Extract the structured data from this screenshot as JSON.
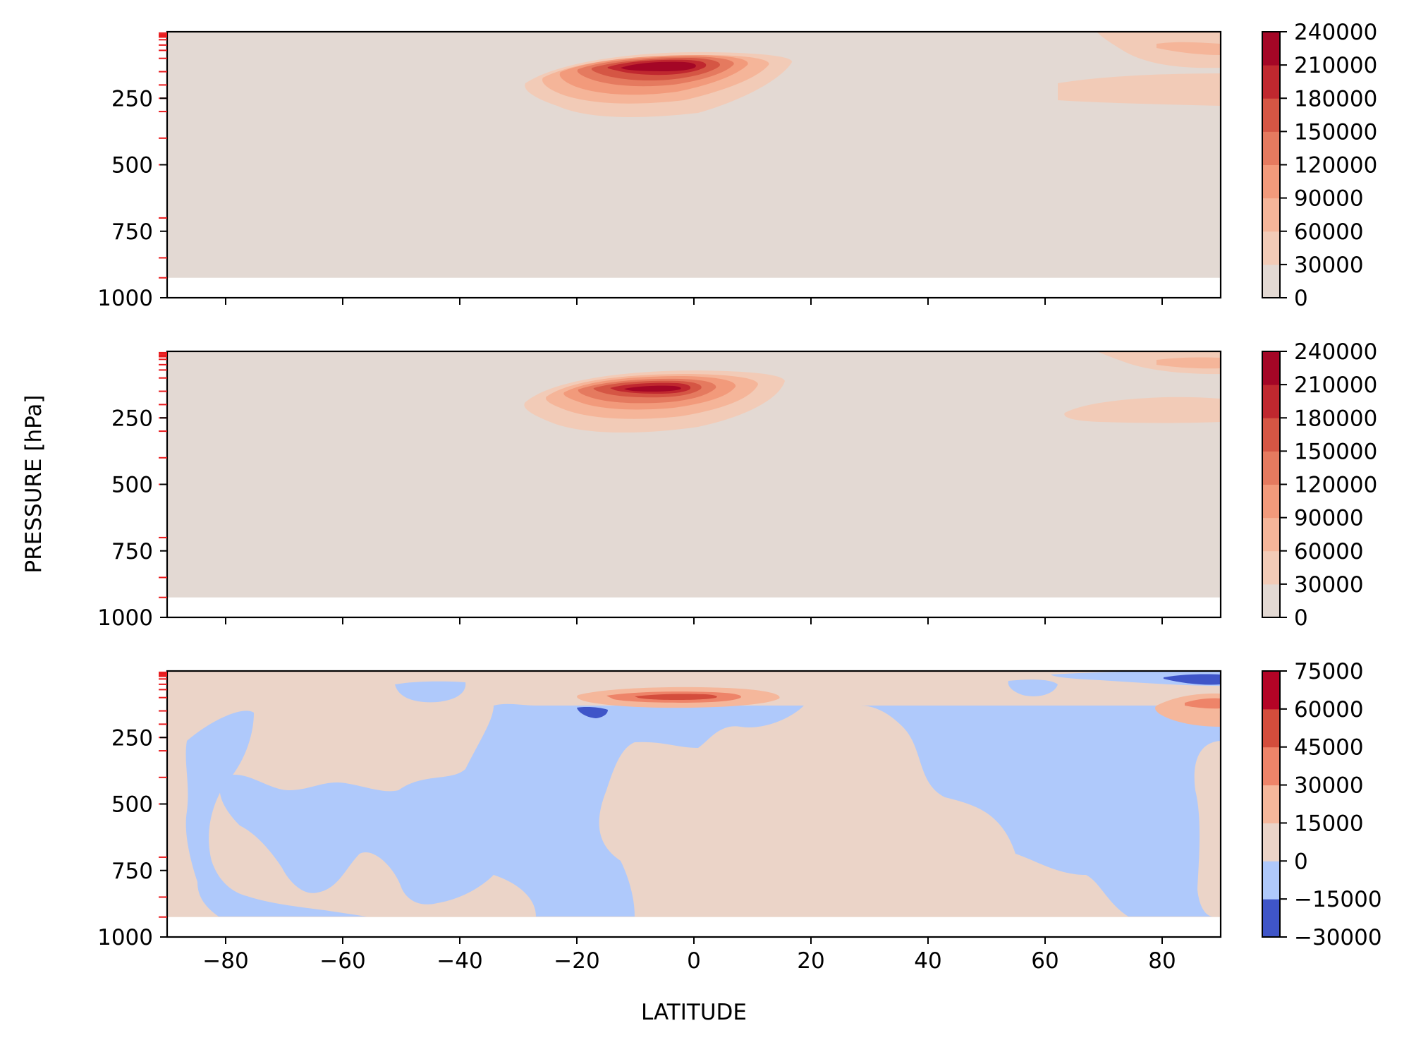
{
  "chart_data": {
    "type": "contourf",
    "xlabel": "LATITUDE",
    "ylabel": "PRESSURE [hPa]",
    "xlim": [
      -90,
      90
    ],
    "ylim": [
      1000,
      0
    ],
    "y_inverted": true,
    "data_bottom_pressure": 925,
    "x_ticks": [
      -80,
      -60,
      -40,
      -20,
      0,
      20,
      40,
      60,
      80
    ],
    "x_tick_labels": [
      "−80",
      "−60",
      "−40",
      "−20",
      "0",
      "20",
      "40",
      "60",
      "80"
    ],
    "y_ticks": [
      250,
      500,
      750,
      1000
    ],
    "y_tick_labels": [
      "250",
      "500",
      "750",
      "1000"
    ],
    "pressure_levels": [
      5,
      10,
      15,
      20,
      30,
      50,
      70,
      100,
      150,
      200,
      250,
      300,
      400,
      500,
      700,
      850,
      925
    ],
    "pressure_level_tick_color": "#e8191c",
    "panels": [
      {
        "colorbar_levels": [
          0,
          30000,
          60000,
          90000,
          120000,
          150000,
          180000,
          210000,
          240000
        ],
        "colorbar_labels": [
          "0",
          "30000",
          "60000",
          "90000",
          "120000",
          "150000",
          "180000",
          "210000",
          "240000"
        ],
        "colors": [
          "#e3d9d3",
          "#f2cbb7",
          "#f5b599",
          "#f29a7b",
          "#e57a5f",
          "#d55644",
          "#c0282f",
          "#a40626"
        ],
        "features": [
          {
            "level_index": 1,
            "lat_range": [
              -29,
              17
            ],
            "pressure_range": [
              75,
              315
            ],
            "note": "upper-level jet core"
          },
          {
            "level_index": 6,
            "lat_range": [
              -14,
              4
            ],
            "pressure_range": [
              110,
              160
            ],
            "note": "maximum"
          },
          {
            "level_index": 1,
            "lat_range": [
              62,
              90
            ],
            "pressure_range": [
              155,
              265
            ],
            "note": "polar upper band"
          },
          {
            "level_index": 1,
            "lat_range": [
              68,
              90
            ],
            "pressure_range": [
              0,
              145
            ],
            "note": "polar top band"
          }
        ]
      },
      {
        "colorbar_levels": [
          0,
          30000,
          60000,
          90000,
          120000,
          150000,
          180000,
          210000,
          240000
        ],
        "colorbar_labels": [
          "0",
          "30000",
          "60000",
          "90000",
          "120000",
          "150000",
          "180000",
          "210000",
          "240000"
        ],
        "colors": [
          "#e3d9d3",
          "#f2cbb7",
          "#f5b599",
          "#f29a7b",
          "#e57a5f",
          "#d55644",
          "#c0282f",
          "#a40626"
        ],
        "features": [
          {
            "level_index": 1,
            "lat_range": [
              -29,
              16
            ],
            "pressure_range": [
              80,
              305
            ],
            "note": "upper-level jet core"
          },
          {
            "level_index": 6,
            "lat_range": [
              -12,
              2
            ],
            "pressure_range": [
              130,
              165
            ],
            "note": "maximum"
          },
          {
            "level_index": 1,
            "lat_range": [
              63,
              90
            ],
            "pressure_range": [
              170,
              270
            ],
            "note": "polar upper band"
          },
          {
            "level_index": 1,
            "lat_range": [
              68,
              90
            ],
            "pressure_range": [
              0,
              85
            ],
            "note": "polar top band"
          }
        ]
      },
      {
        "colorbar_levels": [
          -30000,
          -15000,
          0,
          15000,
          30000,
          45000,
          60000,
          75000
        ],
        "colorbar_labels": [
          "−30000",
          "−15000",
          "0",
          "15000",
          "30000",
          "45000",
          "60000",
          "75000"
        ],
        "colors": [
          "#3f55c8",
          "#afc9fb",
          "#ebd4c8",
          "#f5b79b",
          "#ee8469",
          "#d44d3c",
          "#b40426"
        ],
        "features": [
          {
            "level_index": 3,
            "lat_range": [
              -19,
              15
            ],
            "pressure_range": [
              70,
              130
            ],
            "note": "positive difference aloft"
          },
          {
            "level_index": 5,
            "lat_range": [
              -8,
              5
            ],
            "pressure_range": [
              95,
              115
            ],
            "note": "maximum"
          },
          {
            "level_index": 0,
            "lat_range": [
              -20,
              -15
            ],
            "pressure_range": [
              130,
              175
            ],
            "note": "negative pocket"
          },
          {
            "level_index": 1,
            "lat_range": [
              -20,
              85
            ],
            "pressure_range": [
              110,
              925
            ],
            "note": "broad negative region (mostly)"
          },
          {
            "level_index": 3,
            "lat_range": [
              78,
              90
            ],
            "pressure_range": [
              85,
              170
            ],
            "note": "polar positive"
          },
          {
            "level_index": 0,
            "lat_range": [
              80,
              90
            ],
            "pressure_range": [
              10,
              45
            ],
            "note": "polar negative"
          }
        ]
      }
    ]
  }
}
